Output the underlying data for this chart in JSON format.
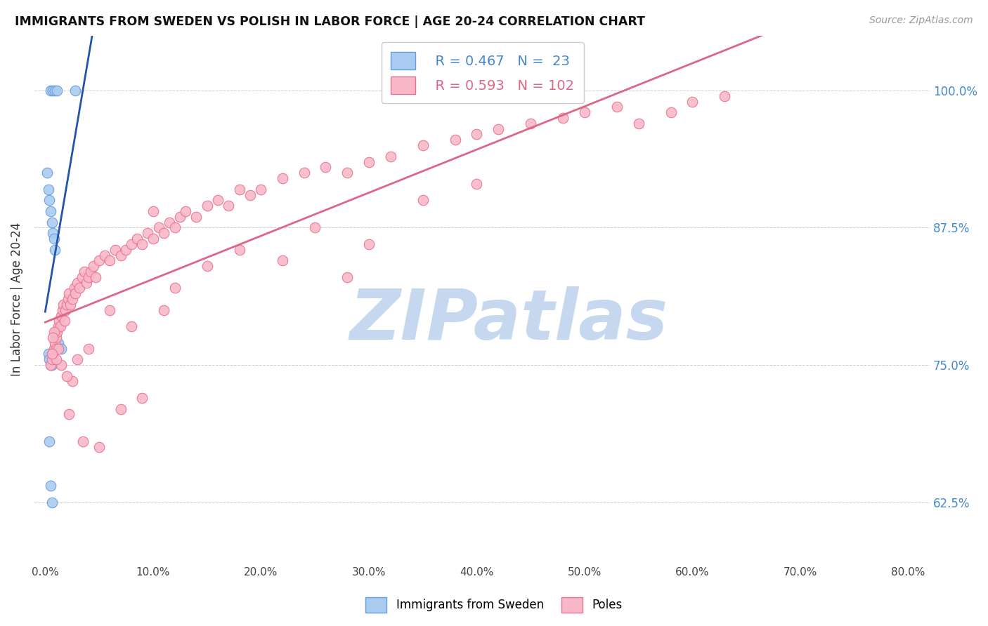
{
  "title": "IMMIGRANTS FROM SWEDEN VS POLISH IN LABOR FORCE | AGE 20-24 CORRELATION CHART",
  "source": "Source: ZipAtlas.com",
  "ylabel": "In Labor Force | Age 20-24",
  "y_tick_labels": [
    "62.5%",
    "75.0%",
    "87.5%",
    "100.0%"
  ],
  "y_tick_values": [
    62.5,
    75.0,
    87.5,
    100.0
  ],
  "x_tick_labels": [
    "0.0%",
    "10.0%",
    "20.0%",
    "30.0%",
    "40.0%",
    "50.0%",
    "60.0%",
    "70.0%",
    "80.0%"
  ],
  "x_tick_values": [
    0,
    10,
    20,
    30,
    40,
    50,
    60,
    70,
    80
  ],
  "xlim": [
    -1,
    82
  ],
  "ylim": [
    57,
    105
  ],
  "sweden_color": "#aaccf0",
  "sweden_edge_color": "#6699dd",
  "poles_color": "#f8b8c8",
  "poles_edge_color": "#e87090",
  "sweden_line_color": "#2255aa",
  "poles_line_color": "#dd6688",
  "sweden_R": 0.467,
  "sweden_N": 23,
  "poles_R": 0.593,
  "poles_N": 102,
  "legend_label_sweden": "Immigrants from Sweden",
  "legend_label_poles": "Poles",
  "sweden_x": [
    0.5,
    0.7,
    0.9,
    1.1,
    2.8,
    0.2,
    0.3,
    0.4,
    0.5,
    0.6,
    0.7,
    0.8,
    0.9,
    1.0,
    1.2,
    1.5,
    0.3,
    0.4,
    0.5,
    0.6,
    0.4,
    0.5,
    0.6
  ],
  "sweden_y": [
    100.0,
    100.0,
    100.0,
    100.0,
    100.0,
    92.5,
    91.0,
    90.0,
    89.0,
    88.0,
    87.0,
    86.5,
    85.5,
    78.0,
    77.0,
    76.5,
    76.0,
    75.5,
    75.0,
    75.0,
    68.0,
    64.0,
    62.5
  ],
  "poles_x": [
    0.5,
    0.6,
    0.7,
    0.8,
    0.9,
    1.0,
    1.0,
    1.1,
    1.2,
    1.3,
    1.4,
    1.5,
    1.6,
    1.7,
    1.8,
    1.9,
    2.0,
    2.1,
    2.2,
    2.3,
    2.5,
    2.7,
    2.8,
    3.0,
    3.2,
    3.4,
    3.6,
    3.8,
    4.0,
    4.2,
    4.5,
    4.7,
    5.0,
    5.5,
    6.0,
    6.5,
    7.0,
    7.5,
    8.0,
    8.5,
    9.0,
    9.5,
    10.0,
    10.5,
    11.0,
    11.5,
    12.0,
    12.5,
    13.0,
    14.0,
    15.0,
    16.0,
    17.0,
    18.0,
    19.0,
    20.0,
    22.0,
    24.0,
    26.0,
    28.0,
    30.0,
    32.0,
    35.0,
    38.0,
    40.0,
    42.0,
    45.0,
    48.0,
    50.0,
    53.0,
    55.0,
    58.0,
    60.0,
    63.0,
    15.0,
    18.0,
    22.0,
    25.0,
    28.0,
    30.0,
    35.0,
    40.0,
    10.0,
    12.0,
    8.0,
    6.0,
    4.0,
    3.0,
    2.5,
    2.0,
    1.5,
    1.2,
    1.0,
    0.8,
    0.7,
    0.6,
    2.2,
    3.5,
    5.0,
    7.0,
    9.0,
    11.0
  ],
  "poles_y": [
    75.0,
    75.5,
    76.0,
    76.5,
    77.0,
    76.5,
    77.5,
    78.0,
    78.5,
    79.0,
    78.5,
    79.5,
    80.0,
    80.5,
    79.0,
    80.0,
    80.5,
    81.0,
    81.5,
    80.5,
    81.0,
    82.0,
    81.5,
    82.5,
    82.0,
    83.0,
    83.5,
    82.5,
    83.0,
    83.5,
    84.0,
    83.0,
    84.5,
    85.0,
    84.5,
    85.5,
    85.0,
    85.5,
    86.0,
    86.5,
    86.0,
    87.0,
    86.5,
    87.5,
    87.0,
    88.0,
    87.5,
    88.5,
    89.0,
    88.5,
    89.5,
    90.0,
    89.5,
    91.0,
    90.5,
    91.0,
    92.0,
    92.5,
    93.0,
    92.5,
    93.5,
    94.0,
    95.0,
    95.5,
    96.0,
    96.5,
    97.0,
    97.5,
    98.0,
    98.5,
    97.0,
    98.0,
    99.0,
    99.5,
    84.0,
    85.5,
    84.5,
    87.5,
    83.0,
    86.0,
    90.0,
    91.5,
    89.0,
    82.0,
    78.5,
    80.0,
    76.5,
    75.5,
    73.5,
    74.0,
    75.0,
    76.5,
    75.5,
    78.0,
    77.5,
    76.0,
    70.5,
    68.0,
    67.5,
    71.0,
    72.0,
    80.0
  ],
  "watermark_text": "ZIPatlas",
  "watermark_color": "#c5d8f0",
  "watermark_fontsize": 72
}
